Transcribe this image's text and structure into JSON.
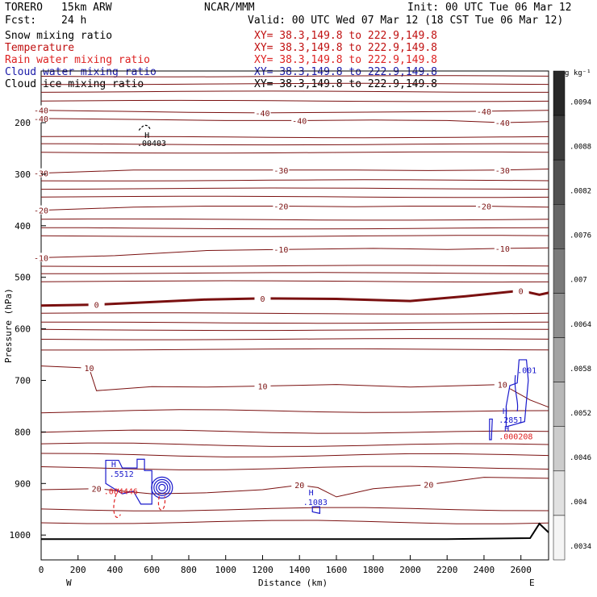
{
  "header": {
    "model": "TORERO",
    "resolution": "15km ARW",
    "source": "NCAR/MMM",
    "init": "Init: 00 UTC Tue 06 Mar 12",
    "fcst_label": "Fcst:",
    "fcst_value": "24 h",
    "valid": "Valid: 00 UTC Wed 07 Mar 12 (18 CST Tue 06 Mar 12)"
  },
  "legend": [
    {
      "name": "Snow mixing ratio",
      "xy": "XY=  38.3,149.8 to 222.9,149.8",
      "color": "#000000"
    },
    {
      "name": "Temperature",
      "xy": "XY=  38.3,149.8 to 222.9,149.8",
      "color": "#cc1111"
    },
    {
      "name": "Rain water mixing ratio",
      "xy": "XY=  38.3,149.8 to 222.9,149.8",
      "color": "#dd2222"
    },
    {
      "name": "Cloud water mixing ratio",
      "xy": "XY=  38.3,149.8 to 222.9,149.8",
      "color": "#1a1aa8"
    },
    {
      "name": "Cloud ice mixing ratio",
      "xy": "XY=  38.3,149.8 to 222.9,149.8",
      "color": "#000000"
    }
  ],
  "colors": {
    "temperature": "#7a1010",
    "cloud_water": "#1a1acc",
    "rain": "#e02020",
    "snow": "#000000",
    "terrain": "#000000"
  },
  "chart_data": {
    "type": "contour-cross-section",
    "xlabel": "Distance (km)",
    "ylabel": "Pressure (hPa)",
    "xlim": [
      0,
      2750
    ],
    "ylim_hpa": [
      1050,
      100
    ],
    "x_ticks": [
      0,
      200,
      400,
      600,
      800,
      1000,
      1200,
      1400,
      1600,
      1800,
      2000,
      2200,
      2400,
      2600
    ],
    "y_ticks": [
      200,
      300,
      400,
      500,
      600,
      700,
      800,
      900,
      1000
    ],
    "x_end_labels": {
      "left": "W",
      "right": "E"
    },
    "colorbar": {
      "unit": "g kg⁻¹",
      "ticks": [
        ".0094",
        ".0088",
        ".0082",
        ".0076",
        ".007",
        ".0064",
        ".0058",
        ".0052",
        ".0046",
        ".004",
        ".0034"
      ]
    },
    "temperature_isotherms": [
      {
        "label": "-40",
        "points": [
          [
            0,
            176
          ],
          [
            400,
            178
          ],
          [
            800,
            180
          ],
          [
            1200,
            181
          ],
          [
            1600,
            180
          ],
          [
            2000,
            179
          ],
          [
            2400,
            178
          ],
          [
            2750,
            176
          ]
        ]
      },
      {
        "label": "-40",
        "points": [
          [
            0,
            192
          ],
          [
            600,
            194
          ],
          [
            1000,
            196
          ],
          [
            1400,
            196
          ],
          [
            1800,
            195
          ],
          [
            2200,
            196
          ],
          [
            2500,
            200
          ],
          [
            2750,
            198
          ]
        ]
      },
      {
        "label": "-30",
        "points": [
          [
            0,
            298
          ],
          [
            500,
            292
          ],
          [
            900,
            292
          ],
          [
            1300,
            292
          ],
          [
            1700,
            292
          ],
          [
            2100,
            293
          ],
          [
            2500,
            292
          ],
          [
            2750,
            290
          ]
        ]
      },
      {
        "label": "-20",
        "points": [
          [
            0,
            370
          ],
          [
            500,
            364
          ],
          [
            900,
            362
          ],
          [
            1300,
            362
          ],
          [
            1700,
            363
          ],
          [
            2000,
            362
          ],
          [
            2400,
            362
          ],
          [
            2750,
            364
          ]
        ]
      },
      {
        "label": "-10",
        "points": [
          [
            0,
            462
          ],
          [
            400,
            458
          ],
          [
            900,
            448
          ],
          [
            1300,
            446
          ],
          [
            1800,
            444
          ],
          [
            2200,
            446
          ],
          [
            2500,
            444
          ],
          [
            2750,
            443
          ]
        ]
      },
      {
        "label": "0",
        "points": [
          [
            0,
            555
          ],
          [
            300,
            553
          ],
          [
            600,
            548
          ],
          [
            900,
            543
          ],
          [
            1200,
            541
          ],
          [
            1600,
            542
          ],
          [
            2000,
            546
          ],
          [
            2300,
            537
          ],
          [
            2600,
            526
          ],
          [
            2700,
            534
          ],
          [
            2750,
            530
          ]
        ]
      },
      {
        "label": "10",
        "points": [
          [
            0,
            672
          ],
          [
            260,
            676
          ],
          [
            300,
            720
          ],
          [
            600,
            712
          ],
          [
            900,
            713
          ],
          [
            1200,
            711
          ],
          [
            1600,
            708
          ],
          [
            2000,
            713
          ],
          [
            2300,
            710
          ],
          [
            2500,
            708
          ],
          [
            2650,
            738
          ],
          [
            2750,
            752
          ]
        ]
      },
      {
        "label": "20",
        "points": [
          [
            0,
            912
          ],
          [
            300,
            910
          ],
          [
            600,
            920
          ],
          [
            900,
            918
          ],
          [
            1200,
            912
          ],
          [
            1400,
            903
          ],
          [
            1500,
            908
          ],
          [
            1600,
            926
          ],
          [
            1800,
            910
          ],
          [
            2100,
            902
          ],
          [
            2400,
            888
          ],
          [
            2750,
            890
          ]
        ]
      }
    ],
    "annotations": [
      {
        "text": "H",
        "x": 560,
        "p": 230
      },
      {
        "text": ".00403",
        "x": 520,
        "p": 245
      },
      {
        "text": "H",
        "x": 380,
        "p": 868
      },
      {
        "text": ".5512",
        "x": 370,
        "p": 887
      },
      {
        "text": ".004446",
        "x": 340,
        "p": 921
      },
      {
        "text": "H",
        "x": 1450,
        "p": 923
      },
      {
        "text": ".1083",
        "x": 1420,
        "p": 942
      },
      {
        "text": "H",
        "x": 2500,
        "p": 765
      },
      {
        "text": ".2851",
        "x": 2480,
        "p": 782
      },
      {
        "text": ".001",
        "x": 2580,
        "p": 686
      },
      {
        "text": "H",
        "x": 2510,
        "p": 799
      },
      {
        "text": ".000208",
        "x": 2480,
        "p": 814
      }
    ]
  }
}
